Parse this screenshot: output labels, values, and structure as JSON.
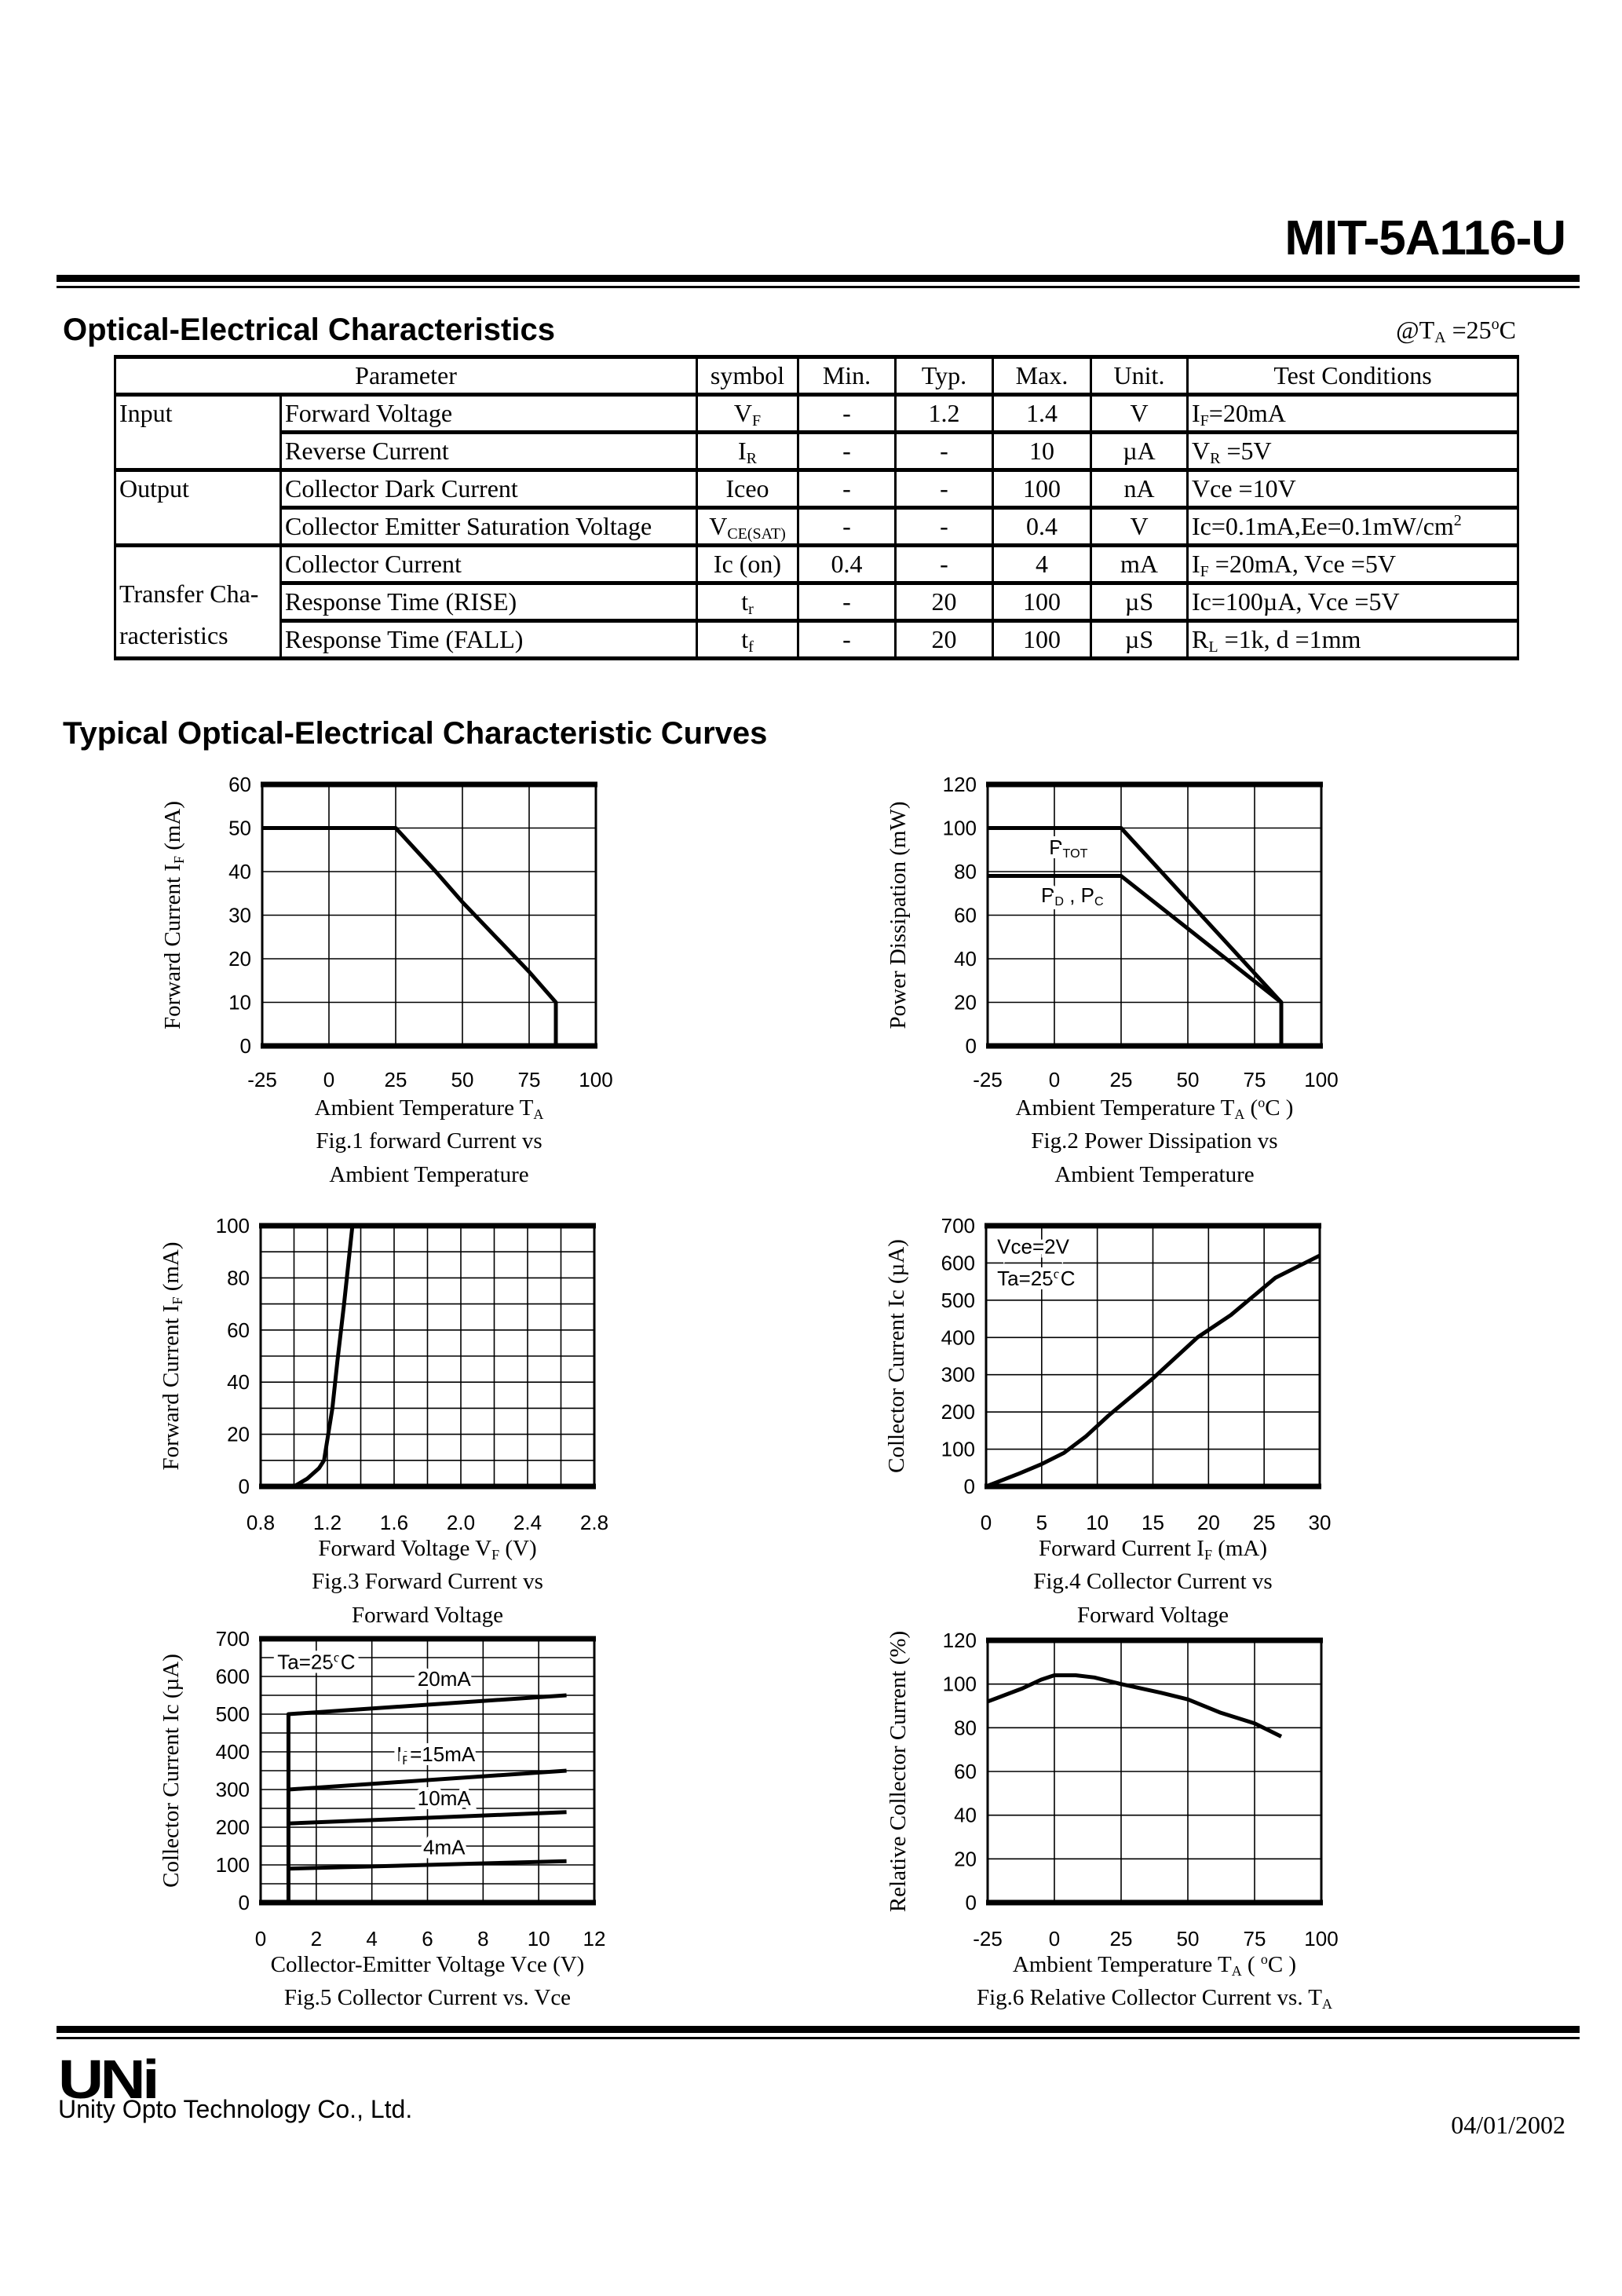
{
  "header": {
    "part_number": "MIT-5A116-U"
  },
  "section1": {
    "title": "Optical-Electrical Characteristics",
    "condition": [
      [
        "@T",
        ""
      ],
      [
        "A",
        "sub"
      ],
      [
        " =25",
        ""
      ],
      [
        "o",
        "sup"
      ],
      [
        "C",
        ""
      ]
    ]
  },
  "table": {
    "headers": [
      "Parameter",
      "symbol",
      "Min.",
      "Typ.",
      "Max.",
      "Unit.",
      "Test Conditions"
    ],
    "groups": [
      {
        "label": "Input",
        "rows": [
          {
            "param": "Forward Voltage",
            "symbol": [
              [
                "V",
                ""
              ],
              [
                "F",
                "sub"
              ]
            ],
            "min": "-",
            "typ": "1.2",
            "max": "1.4",
            "unit": "V",
            "cond": [
              [
                "I",
                ""
              ],
              [
                "F",
                "sub"
              ],
              [
                "=20mA",
                ""
              ]
            ]
          },
          {
            "param": "Reverse Current",
            "symbol": [
              [
                "I",
                ""
              ],
              [
                "R",
                "sub"
              ]
            ],
            "min": "-",
            "typ": "-",
            "max": "10",
            "unit": "µA",
            "cond": [
              [
                "V",
                ""
              ],
              [
                "R",
                "sub"
              ],
              [
                " =5V",
                ""
              ]
            ]
          }
        ]
      },
      {
        "label": "Output",
        "rows": [
          {
            "param": "Collector Dark Current",
            "symbol": [
              [
                "Iceo",
                ""
              ]
            ],
            "min": "-",
            "typ": "-",
            "max": "100",
            "unit": "nA",
            "cond": [
              [
                "Vce =10V",
                ""
              ]
            ]
          },
          {
            "param": "Collector Emitter Saturation Voltage",
            "symbol": [
              [
                "V",
                ""
              ],
              [
                "CE(SAT)",
                "sub"
              ]
            ],
            "min": "-",
            "typ": "-",
            "max": "0.4",
            "unit": "V",
            "cond": [
              [
                "Ic=0.1mA,Ee=0.1mW/cm",
                ""
              ],
              [
                "2",
                "sup"
              ]
            ]
          }
        ]
      },
      {
        "label": "Transfer Cha- racteristics",
        "label_lines": [
          "Transfer Cha-",
          "racteristics"
        ],
        "rows": [
          {
            "param": "Collector Current",
            "symbol": [
              [
                "Ic (on)",
                ""
              ]
            ],
            "min": "0.4",
            "typ": "-",
            "max": "4",
            "unit": "mA",
            "cond": [
              [
                "I",
                ""
              ],
              [
                "F",
                "sub"
              ],
              [
                " =20mA, Vce =5V",
                ""
              ]
            ]
          },
          {
            "param": "Response Time (RISE)",
            "symbol": [
              [
                "t",
                ""
              ],
              [
                "r",
                "sub"
              ]
            ],
            "min": "-",
            "typ": "20",
            "max": "100",
            "unit": "µS",
            "cond": [
              [
                "Ic=100µA, Vce =5V",
                ""
              ]
            ]
          },
          {
            "param": "Response Time (FALL)",
            "symbol": [
              [
                "t",
                ""
              ],
              [
                "f",
                "sub"
              ]
            ],
            "min": "-",
            "typ": "20",
            "max": "100",
            "unit": "µS",
            "cond": [
              [
                "R",
                ""
              ],
              [
                "L",
                "sub"
              ],
              [
                " =1k, d =1mm",
                ""
              ]
            ]
          }
        ]
      }
    ]
  },
  "section2": {
    "title": "Typical Optical-Electrical Characteristic Curves"
  },
  "chart_data": [
    {
      "type": "line",
      "xlim": [
        -25,
        100
      ],
      "ylim": [
        0,
        60
      ],
      "xticks": [
        "-25",
        "0",
        "25",
        "50",
        "75",
        "100"
      ],
      "xtick_values": [
        -25,
        0,
        25,
        50,
        75,
        100
      ],
      "yticks": [
        "0",
        "10",
        "20",
        "30",
        "40",
        "50",
        "60"
      ],
      "ytick_values": [
        0,
        10,
        20,
        30,
        40,
        50,
        60
      ],
      "xgrid": [
        0,
        25,
        50,
        75
      ],
      "ygrid": [
        10,
        20,
        30,
        40,
        50
      ],
      "ylabel": [
        [
          "Forward Current I",
          ""
        ],
        [
          "F",
          "sub"
        ],
        [
          "  (mA)",
          ""
        ]
      ],
      "xlabel": [
        [
          "Ambient Temperature T",
          ""
        ],
        [
          "A",
          "sub"
        ]
      ],
      "caption": [
        "Fig.1 forward Current vs",
        "Ambient Temperature"
      ],
      "series": [
        {
          "points": [
            [
              -25,
              50
            ],
            [
              25,
              50
            ],
            [
              40,
              40
            ],
            [
              50,
              33
            ],
            [
              75,
              17
            ],
            [
              85,
              10
            ],
            [
              85,
              0
            ]
          ]
        }
      ],
      "annotations": []
    },
    {
      "type": "line",
      "xlim": [
        -25,
        100
      ],
      "ylim": [
        0,
        120
      ],
      "xticks": [
        "-25",
        "0",
        "25",
        "50",
        "75",
        "100"
      ],
      "xtick_values": [
        -25,
        0,
        25,
        50,
        75,
        100
      ],
      "yticks": [
        "0",
        "20",
        "40",
        "60",
        "80",
        "100",
        "120"
      ],
      "ytick_values": [
        0,
        20,
        40,
        60,
        80,
        100,
        120
      ],
      "xgrid": [
        0,
        25,
        50,
        75
      ],
      "ygrid": [
        20,
        40,
        60,
        80,
        100
      ],
      "ylabel": [
        [
          "Power Dissipation (mW)",
          ""
        ]
      ],
      "xlabel": [
        [
          "Ambient Temperature T",
          ""
        ],
        [
          "A",
          "sub"
        ],
        [
          " (",
          ""
        ],
        [
          "o",
          "sup"
        ],
        [
          "C )",
          ""
        ]
      ],
      "caption": [
        "Fig.2 Power Dissipation vs",
        "Ambient Temperature"
      ],
      "series": [
        {
          "name": "P_TOT",
          "points": [
            [
              -25,
              100
            ],
            [
              25,
              100
            ],
            [
              85,
              20
            ]
          ]
        },
        {
          "name": "P_D , P_C",
          "points": [
            [
              -25,
              78
            ],
            [
              25,
              78
            ],
            [
              85,
              20
            ],
            [
              85,
              0
            ]
          ]
        }
      ],
      "annotations": [
        [
          [
            "P",
            ""
          ],
          [
            "TOT",
            "sub"
          ]
        ],
        [
          [
            "P",
            ""
          ],
          [
            "D",
            "sub"
          ],
          [
            " , P",
            ""
          ],
          [
            "C",
            "sub"
          ]
        ]
      ]
    },
    {
      "type": "line",
      "xlim": [
        0.8,
        2.8
      ],
      "ylim": [
        0,
        100
      ],
      "xticks": [
        "0.8",
        "1.2",
        "1.6",
        "2.0",
        "2.4",
        "2.8"
      ],
      "xtick_values": [
        0.8,
        1.2,
        1.6,
        2.0,
        2.4,
        2.8
      ],
      "yticks": [
        "0",
        "20",
        "40",
        "60",
        "80",
        "100"
      ],
      "ytick_values": [
        0,
        20,
        40,
        60,
        80,
        100
      ],
      "xgrid": [
        1.0,
        1.2,
        1.4,
        1.6,
        1.8,
        2.0,
        2.2,
        2.4,
        2.6
      ],
      "ygrid": [
        10,
        20,
        30,
        40,
        50,
        60,
        70,
        80,
        90
      ],
      "ylabel": [
        [
          "Forward Current I",
          ""
        ],
        [
          "F",
          "sub"
        ],
        [
          "  (mA)",
          ""
        ]
      ],
      "xlabel": [
        [
          "Forward Voltage V",
          ""
        ],
        [
          "F",
          "sub"
        ],
        [
          " (V)",
          ""
        ]
      ],
      "caption": [
        "Fig.3 Forward Current vs",
        "Forward Voltage"
      ],
      "series": [
        {
          "points": [
            [
              1.0,
              0
            ],
            [
              1.08,
              3
            ],
            [
              1.15,
              7
            ],
            [
              1.18,
              10
            ],
            [
              1.2,
              18
            ],
            [
              1.23,
              30
            ],
            [
              1.26,
              48
            ],
            [
              1.3,
              70
            ],
            [
              1.35,
              100
            ]
          ]
        }
      ],
      "annotations": []
    },
    {
      "type": "line",
      "xlim": [
        0,
        30
      ],
      "ylim": [
        0,
        700
      ],
      "xticks": [
        "0",
        "5",
        "10",
        "15",
        "20",
        "25",
        "30"
      ],
      "xtick_values": [
        0,
        5,
        10,
        15,
        20,
        25,
        30
      ],
      "yticks": [
        "0",
        "100",
        "200",
        "300",
        "400",
        "500",
        "600",
        "700"
      ],
      "ytick_values": [
        0,
        100,
        200,
        300,
        400,
        500,
        600,
        700
      ],
      "xgrid": [
        5,
        10,
        15,
        20,
        25
      ],
      "ygrid": [
        100,
        200,
        300,
        400,
        500,
        600
      ],
      "ylabel": [
        [
          "Collector Current Ic (µA)",
          ""
        ]
      ],
      "xlabel": [
        [
          "Forward Current I",
          ""
        ],
        [
          "F",
          "sub"
        ],
        [
          " (mA)",
          ""
        ]
      ],
      "caption": [
        "Fig.4 Collector Current vs",
        "Forward Voltage"
      ],
      "series": [
        {
          "points": [
            [
              0,
              0
            ],
            [
              3,
              35
            ],
            [
              5,
              60
            ],
            [
              7,
              90
            ],
            [
              9,
              135
            ],
            [
              11,
              190
            ],
            [
              15,
              290
            ],
            [
              19,
              400
            ],
            [
              22,
              460
            ],
            [
              24,
              510
            ],
            [
              26,
              560
            ],
            [
              30,
              620
            ]
          ]
        }
      ],
      "annotations": [
        [
          [
            "Vce=2V",
            ""
          ]
        ],
        [
          [
            "Ta=25",
            ""
          ],
          [
            "o",
            "sup"
          ],
          [
            "C",
            ""
          ]
        ]
      ]
    },
    {
      "type": "line",
      "xlim": [
        0,
        12
      ],
      "ylim": [
        0,
        700
      ],
      "xticks": [
        "0",
        "2",
        "4",
        "6",
        "8",
        "10",
        "12"
      ],
      "xtick_values": [
        0,
        2,
        4,
        6,
        8,
        10,
        12
      ],
      "yticks": [
        "0",
        "100",
        "200",
        "300",
        "400",
        "500",
        "600",
        "700"
      ],
      "ytick_values": [
        0,
        100,
        200,
        300,
        400,
        500,
        600,
        700
      ],
      "xgrid": [
        2,
        4,
        6,
        8,
        10
      ],
      "ygrid": [
        50,
        100,
        150,
        200,
        250,
        300,
        350,
        400,
        450,
        500,
        550,
        600,
        650
      ],
      "ylabel": [
        [
          "Collector Current Ic (µA)",
          ""
        ]
      ],
      "xlabel": [
        [
          "Collector-Emitter Voltage Vce (V)",
          ""
        ]
      ],
      "caption": [
        "Fig.5 Collector Current vs. Vce"
      ],
      "series": [
        {
          "name": "20mA",
          "points": [
            [
              1,
              0
            ],
            [
              1,
              500
            ],
            [
              11,
              550
            ]
          ]
        },
        {
          "name": "IF=15mA",
          "points": [
            [
              1,
              300
            ],
            [
              11,
              350
            ]
          ]
        },
        {
          "name": "10mA",
          "points": [
            [
              1,
              210
            ],
            [
              11,
              240
            ]
          ]
        },
        {
          "name": "4mA",
          "points": [
            [
              1,
              90
            ],
            [
              11,
              110
            ]
          ]
        }
      ],
      "annotations": [
        [
          [
            "Ta=25",
            ""
          ],
          [
            "o",
            "sup"
          ],
          [
            "C",
            ""
          ]
        ],
        [
          [
            "20mA",
            ""
          ]
        ],
        [
          [
            "I",
            ""
          ],
          [
            "F",
            "sub"
          ],
          [
            "=15mA",
            ""
          ]
        ],
        [
          [
            "10mA",
            ""
          ]
        ],
        [
          [
            "4mA",
            ""
          ]
        ]
      ]
    },
    {
      "type": "line",
      "xlim": [
        -25,
        100
      ],
      "ylim": [
        0,
        120
      ],
      "xticks": [
        "-25",
        "0",
        "25",
        "50",
        "75",
        "100"
      ],
      "xtick_values": [
        -25,
        0,
        25,
        50,
        75,
        100
      ],
      "yticks": [
        "0",
        "20",
        "40",
        "60",
        "80",
        "100",
        "120"
      ],
      "ytick_values": [
        0,
        20,
        40,
        60,
        80,
        100,
        120
      ],
      "xgrid": [
        0,
        25,
        50,
        75
      ],
      "ygrid": [
        20,
        40,
        60,
        80,
        100
      ],
      "ylabel": [
        [
          "Relative Collector Current (%)",
          ""
        ]
      ],
      "xlabel": [
        [
          "Ambient Temperature T",
          ""
        ],
        [
          "A",
          "sub"
        ],
        [
          " ( ",
          ""
        ],
        [
          "o",
          "sup"
        ],
        [
          "C )",
          ""
        ]
      ],
      "caption": [
        [
          "Fig.6 Relative Collector Current vs. T",
          ""
        ],
        [
          "A",
          "sub"
        ]
      ],
      "series": [
        {
          "points": [
            [
              -25,
              92
            ],
            [
              -12,
              98
            ],
            [
              -5,
              102
            ],
            [
              0,
              104
            ],
            [
              8,
              104
            ],
            [
              15,
              103
            ],
            [
              25,
              100
            ],
            [
              40,
              96
            ],
            [
              50,
              93
            ],
            [
              62,
              87
            ],
            [
              75,
              82
            ],
            [
              85,
              76
            ]
          ]
        }
      ],
      "annotations": []
    }
  ],
  "footer": {
    "logo": "UNi",
    "company": "Unity Opto Technology Co., Ltd.",
    "date": "04/01/2002"
  }
}
